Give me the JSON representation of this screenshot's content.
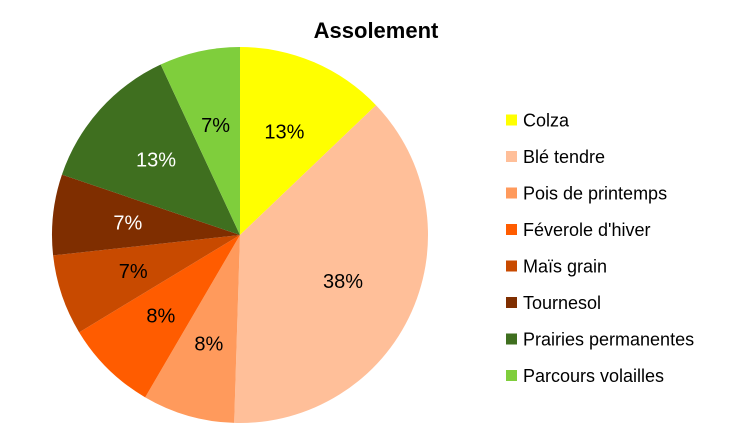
{
  "chart_data": {
    "type": "pie",
    "title": "Assolement",
    "categories": [
      "Colza",
      "Blé tendre",
      "Pois de printemps",
      "Féverole d'hiver",
      "Maïs grain",
      "Tournesol",
      "Prairies permanentes",
      "Parcours volailles"
    ],
    "values": [
      13,
      38,
      8,
      8,
      7,
      7,
      13,
      7
    ],
    "labels": [
      "13%",
      "38%",
      "8%",
      "8%",
      "7%",
      "7%",
      "13%",
      "7%"
    ],
    "colors": [
      "#ffff00",
      "#ffbf99",
      "#ff9a5c",
      "#ff5c00",
      "#c84a00",
      "#7f2e00",
      "#3f6f1f",
      "#7fce3c"
    ],
    "label_colors": [
      "#000000",
      "#000000",
      "#000000",
      "#000000",
      "#000000",
      "#ffffff",
      "#ffffff",
      "#000000"
    ],
    "legend_position": "right",
    "start_angle": "12 o'clock",
    "direction": "clockwise"
  }
}
